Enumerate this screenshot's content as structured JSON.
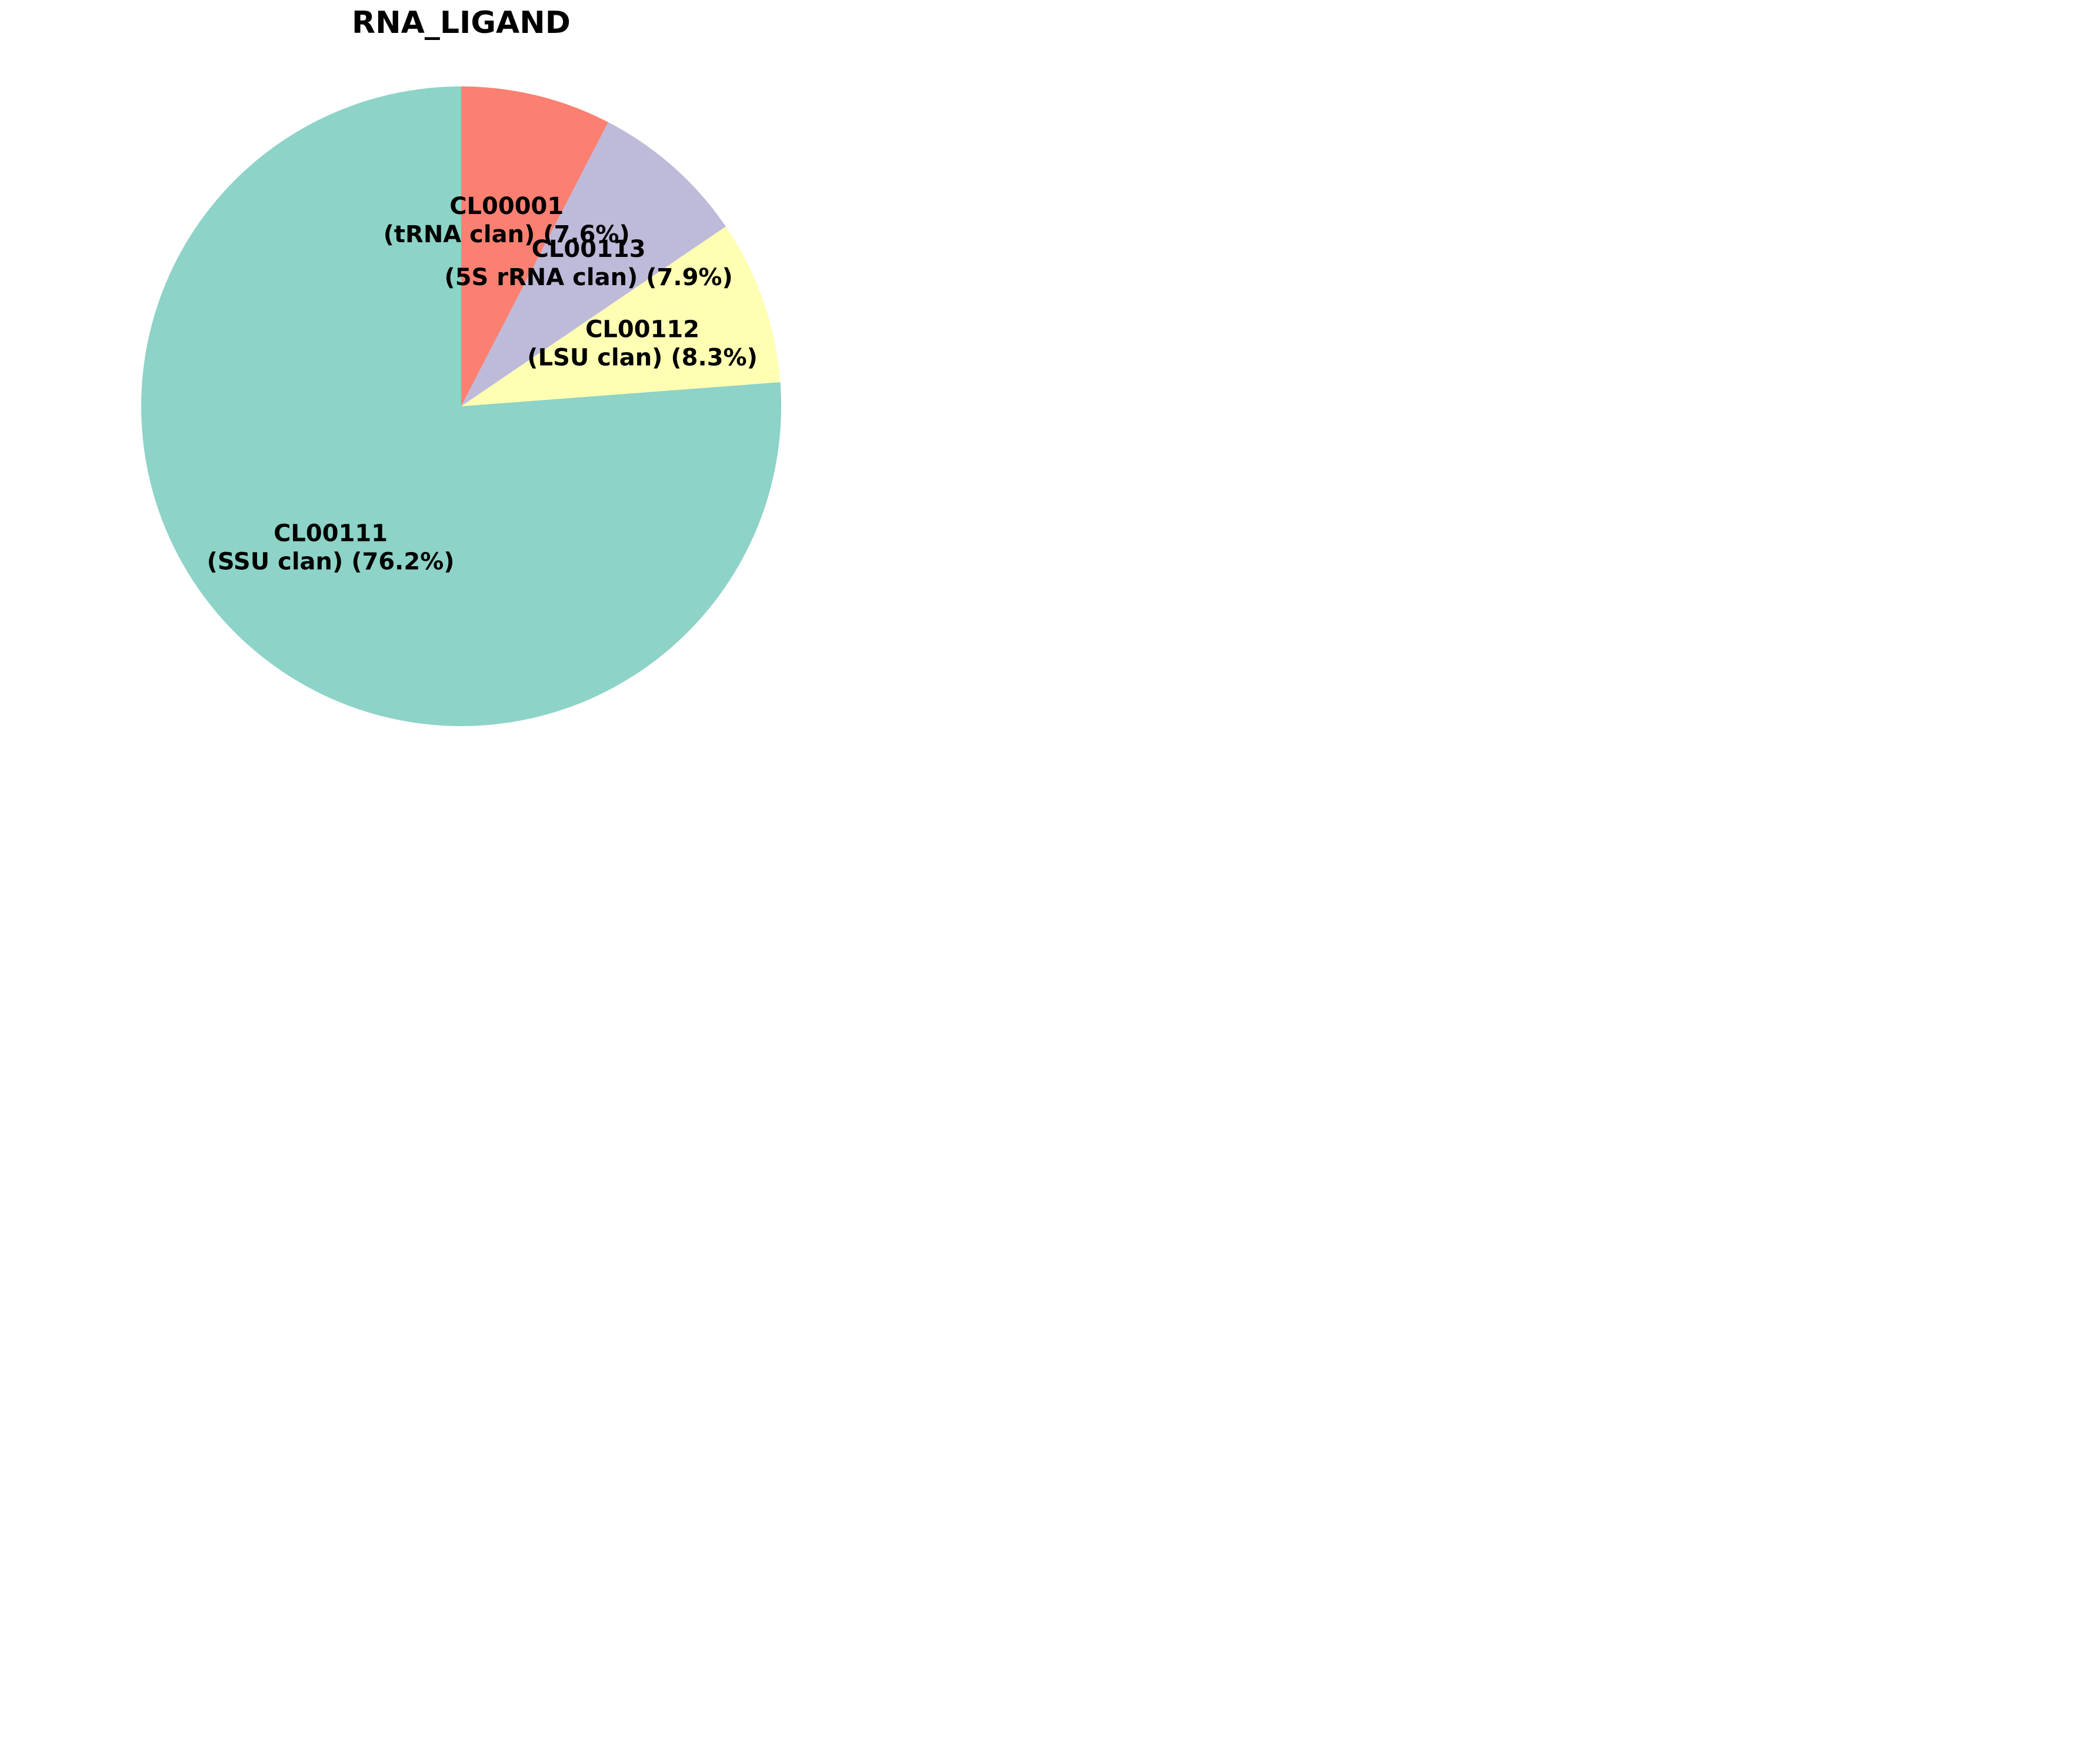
{
  "chart_data": {
    "type": "pie",
    "title": "RNA_LIGAND",
    "start_angle_deg": 90,
    "direction": "clockwise",
    "slices": [
      {
        "label_line1": "CL00001",
        "label_line2": "(tRNA clan) (7.6%)",
        "value": 7.6,
        "color": "#fb8072"
      },
      {
        "label_line1": "CL00113",
        "label_line2": "(5S rRNA clan) (7.9%)",
        "value": 7.9,
        "color": "#bebada"
      },
      {
        "label_line1": "CL00112",
        "label_line2": "(LSU clan) (8.3%)",
        "value": 8.3,
        "color": "#ffffb3"
      },
      {
        "label_line1": "CL00111",
        "label_line2": "(SSU clan) (76.2%)",
        "value": 76.2,
        "color": "#8dd3c7"
      }
    ]
  }
}
